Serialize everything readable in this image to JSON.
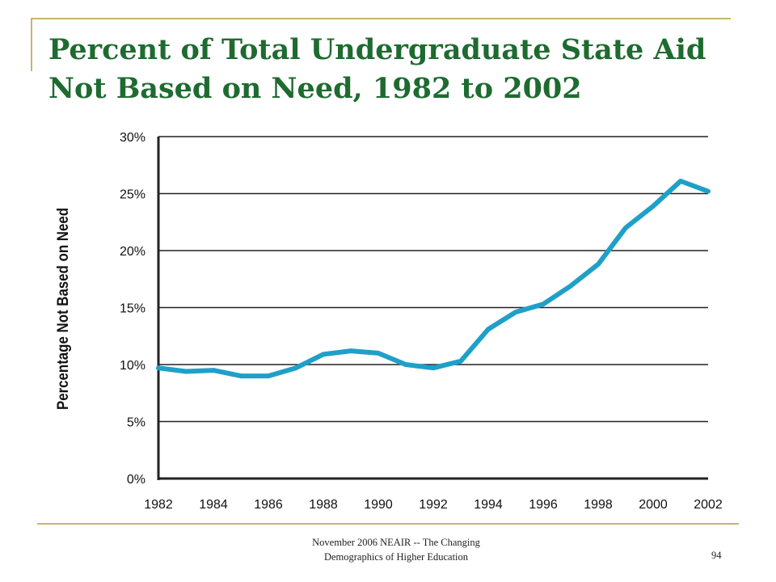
{
  "slide": {
    "title_line1": "Percent of Total Undergraduate State Aid",
    "title_line2": "Not Based on Need, 1982 to 2002",
    "footer_line1": "November 2006 NEAIR -- The Changing",
    "footer_line2": "Demographics of Higher Education",
    "page_number": "94",
    "accent_color": "#c9b46e",
    "title_color": "#1e6b30"
  },
  "chart_data": {
    "type": "line",
    "title": "",
    "xlabel": "",
    "ylabel": "Percentage Not Based on Need",
    "x": [
      1982,
      1983,
      1984,
      1985,
      1986,
      1987,
      1988,
      1989,
      1990,
      1991,
      1992,
      1993,
      1994,
      1995,
      1996,
      1997,
      1998,
      1999,
      2000,
      2001,
      2002
    ],
    "series": [
      {
        "values": [
          9.7,
          9.4,
          9.5,
          9.0,
          9.0,
          9.7,
          10.9,
          11.2,
          11.0,
          10.0,
          9.7,
          10.3,
          13.1,
          14.6,
          15.3,
          16.9,
          18.8,
          22.0,
          23.9,
          26.1,
          25.2
        ],
        "color": "#1ea0c8"
      }
    ],
    "xlim": [
      1982,
      2002
    ],
    "ylim": [
      0,
      30
    ],
    "x_ticks": [
      "1982",
      "1984",
      "1986",
      "1988",
      "1990",
      "1992",
      "1994",
      "1996",
      "1998",
      "2000",
      "2002"
    ],
    "y_ticks": [
      "0%",
      "5%",
      "10%",
      "15%",
      "20%",
      "25%",
      "30%"
    ],
    "grid": "horizontal"
  }
}
